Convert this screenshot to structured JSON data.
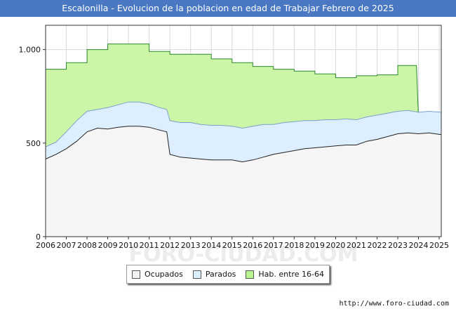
{
  "chart_data": {
    "type": "area",
    "title": "Escalonilla - Evolucion de la poblacion en edad de Trabajar Febrero de 2025",
    "x_ticks": [
      "2006",
      "2007",
      "2008",
      "2009",
      "2010",
      "2011",
      "2012",
      "2013",
      "2014",
      "2015",
      "2016",
      "2017",
      "2018",
      "2019",
      "2020",
      "2021",
      "2022",
      "2023",
      "2024",
      "2025"
    ],
    "y_ticks": [
      {
        "value": 0,
        "label": "0"
      },
      {
        "value": 500,
        "label": "500"
      },
      {
        "value": 1000,
        "label": "1.000"
      }
    ],
    "xlim": [
      2006,
      2025.1
    ],
    "ylim": [
      0,
      1130
    ],
    "watermark": "FORO-CIUDAD.COM",
    "series": [
      {
        "name": "Hab. entre 16-64",
        "color": "#ccf5a8",
        "line": "#2a8a2a",
        "points": [
          [
            2006,
            895
          ],
          [
            2007,
            895
          ],
          [
            2007,
            930
          ],
          [
            2008,
            930
          ],
          [
            2008,
            1000
          ],
          [
            2009,
            1000
          ],
          [
            2009,
            1030
          ],
          [
            2011,
            1030
          ],
          [
            2011,
            990
          ],
          [
            2012,
            990
          ],
          [
            2012,
            975
          ],
          [
            2014,
            975
          ],
          [
            2014,
            950
          ],
          [
            2015,
            950
          ],
          [
            2015,
            930
          ],
          [
            2016,
            930
          ],
          [
            2016,
            910
          ],
          [
            2017,
            910
          ],
          [
            2017,
            895
          ],
          [
            2018,
            895
          ],
          [
            2018,
            885
          ],
          [
            2019,
            885
          ],
          [
            2019,
            870
          ],
          [
            2020,
            870
          ],
          [
            2020,
            850
          ],
          [
            2021,
            850
          ],
          [
            2021,
            860
          ],
          [
            2022,
            860
          ],
          [
            2022,
            865
          ],
          [
            2023,
            865
          ],
          [
            2023,
            915
          ],
          [
            2023.9,
            915
          ],
          [
            2024,
            640
          ],
          [
            2025.1,
            640
          ]
        ]
      },
      {
        "name": "Parados",
        "color": "#ddeeff",
        "line": "#7aa0cc",
        "points": [
          [
            2006,
            480
          ],
          [
            2006.5,
            505
          ],
          [
            2007,
            560
          ],
          [
            2007.5,
            620
          ],
          [
            2008,
            670
          ],
          [
            2008.5,
            680
          ],
          [
            2009,
            690
          ],
          [
            2009.5,
            705
          ],
          [
            2010,
            720
          ],
          [
            2010.5,
            720
          ],
          [
            2011,
            710
          ],
          [
            2011.5,
            690
          ],
          [
            2011.85,
            680
          ],
          [
            2012,
            620
          ],
          [
            2012.5,
            610
          ],
          [
            2013,
            610
          ],
          [
            2013.5,
            600
          ],
          [
            2014,
            595
          ],
          [
            2014.5,
            595
          ],
          [
            2015,
            590
          ],
          [
            2015.5,
            580
          ],
          [
            2016,
            590
          ],
          [
            2016.5,
            600
          ],
          [
            2017,
            600
          ],
          [
            2017.5,
            610
          ],
          [
            2018,
            615
          ],
          [
            2018.5,
            620
          ],
          [
            2019,
            620
          ],
          [
            2019.5,
            625
          ],
          [
            2020,
            625
          ],
          [
            2020.5,
            630
          ],
          [
            2021,
            625
          ],
          [
            2021.5,
            640
          ],
          [
            2022,
            650
          ],
          [
            2022.5,
            660
          ],
          [
            2023,
            670
          ],
          [
            2023.5,
            675
          ],
          [
            2024,
            665
          ],
          [
            2024.5,
            670
          ],
          [
            2025.1,
            665
          ]
        ]
      },
      {
        "name": "Ocupados",
        "color": "#f5f5f5",
        "line": "#222222",
        "points": [
          [
            2006,
            415
          ],
          [
            2006.5,
            440
          ],
          [
            2007,
            470
          ],
          [
            2007.5,
            510
          ],
          [
            2008,
            560
          ],
          [
            2008.5,
            580
          ],
          [
            2009,
            575
          ],
          [
            2009.5,
            585
          ],
          [
            2010,
            590
          ],
          [
            2010.5,
            590
          ],
          [
            2011,
            585
          ],
          [
            2011.5,
            570
          ],
          [
            2011.85,
            560
          ],
          [
            2012,
            440
          ],
          [
            2012.5,
            425
          ],
          [
            2013,
            420
          ],
          [
            2013.5,
            415
          ],
          [
            2014,
            410
          ],
          [
            2014.5,
            410
          ],
          [
            2015,
            410
          ],
          [
            2015.5,
            400
          ],
          [
            2016,
            410
          ],
          [
            2016.5,
            425
          ],
          [
            2017,
            440
          ],
          [
            2017.5,
            450
          ],
          [
            2018,
            460
          ],
          [
            2018.5,
            470
          ],
          [
            2019,
            475
          ],
          [
            2019.5,
            480
          ],
          [
            2020,
            485
          ],
          [
            2020.5,
            490
          ],
          [
            2021,
            490
          ],
          [
            2021.5,
            510
          ],
          [
            2022,
            520
          ],
          [
            2022.5,
            535
          ],
          [
            2023,
            550
          ],
          [
            2023.5,
            555
          ],
          [
            2024,
            550
          ],
          [
            2024.5,
            555
          ],
          [
            2025.1,
            545
          ]
        ]
      }
    ]
  },
  "legend": [
    {
      "label": "Ocupados",
      "color": "#f2f2f2"
    },
    {
      "label": "Parados",
      "color": "#ddeeff"
    },
    {
      "label": "Hab. entre 16-64",
      "color": "#b9f58f"
    }
  ],
  "source": "http://www.foro-ciudad.com"
}
